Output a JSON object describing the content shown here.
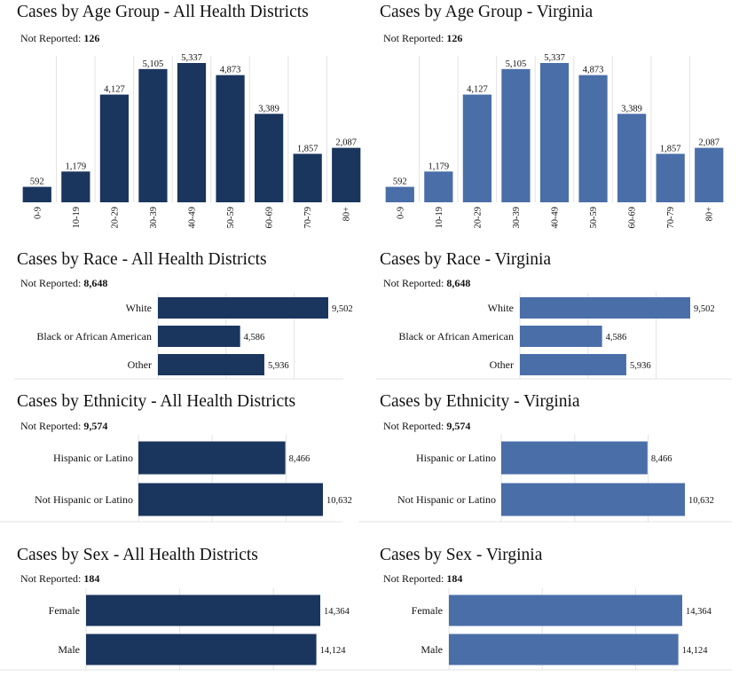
{
  "colors": {
    "dark": "#1a355e",
    "light": "#4a6ea8",
    "grid": "#e3e3e3",
    "text": "#111111"
  },
  "not_reported_label": "Not Reported:",
  "panels": {
    "age_all": {
      "title": "Cases by Age Group - All Health Districts",
      "not_reported": "126"
    },
    "age_va": {
      "title": "Cases by Age Group - Virginia",
      "not_reported": "126"
    },
    "race_all": {
      "title": "Cases by Race - All Health Districts",
      "not_reported": "8,648"
    },
    "race_va": {
      "title": "Cases by Race - Virginia",
      "not_reported": "8,648"
    },
    "eth_all": {
      "title": "Cases by Ethnicity - All Health Districts",
      "not_reported": "9,574"
    },
    "eth_va": {
      "title": "Cases by Ethnicity - Virginia",
      "not_reported": "9,574"
    },
    "sex_all": {
      "title": "Cases by Sex - All Health Districts",
      "not_reported": "184"
    },
    "sex_va": {
      "title": "Cases by Sex - Virginia",
      "not_reported": "184"
    }
  },
  "chart_data": [
    {
      "id": "age_all",
      "type": "bar",
      "orientation": "vertical",
      "title": "Cases by Age Group - All Health Districts",
      "categories": [
        "0-9",
        "10-19",
        "20-29",
        "30-39",
        "40-49",
        "50-59",
        "60-69",
        "70-79",
        "80+"
      ],
      "values": [
        592,
        1179,
        4127,
        5105,
        5337,
        4873,
        3389,
        1857,
        2087
      ],
      "labels": [
        "592",
        "1,179",
        "4,127",
        "5,105",
        "5,337",
        "4,873",
        "3,389",
        "1,857",
        "2,087"
      ],
      "ylim": [
        0,
        5337
      ],
      "color": "#1a355e"
    },
    {
      "id": "age_va",
      "type": "bar",
      "orientation": "vertical",
      "title": "Cases by Age Group - Virginia",
      "categories": [
        "0-9",
        "10-19",
        "20-29",
        "30-39",
        "40-49",
        "50-59",
        "60-69",
        "70-79",
        "80+"
      ],
      "values": [
        592,
        1179,
        4127,
        5105,
        5337,
        4873,
        3389,
        1857,
        2087
      ],
      "labels": [
        "592",
        "1,179",
        "4,127",
        "5,105",
        "5,337",
        "4,873",
        "3,389",
        "1,857",
        "2,087"
      ],
      "ylim": [
        0,
        5337
      ],
      "color": "#4a6ea8"
    },
    {
      "id": "race_all",
      "type": "bar",
      "orientation": "horizontal",
      "title": "Cases by Race - All Health Districts",
      "categories": [
        "White",
        "Black or African American",
        "Other"
      ],
      "values": [
        9502,
        4586,
        5936
      ],
      "labels": [
        "9,502",
        "4,586",
        "5,936"
      ],
      "xlim": [
        0,
        9502
      ],
      "color": "#1a355e"
    },
    {
      "id": "race_va",
      "type": "bar",
      "orientation": "horizontal",
      "title": "Cases by Race - Virginia",
      "categories": [
        "White",
        "Black or African American",
        "Other"
      ],
      "values": [
        9502,
        4586,
        5936
      ],
      "labels": [
        "9,502",
        "4,586",
        "5,936"
      ],
      "xlim": [
        0,
        9502
      ],
      "color": "#4a6ea8"
    },
    {
      "id": "eth_all",
      "type": "bar",
      "orientation": "horizontal",
      "title": "Cases by Ethnicity - All Health Districts",
      "categories": [
        "Hispanic or Latino",
        "Not Hispanic or Latino"
      ],
      "values": [
        8466,
        10632
      ],
      "labels": [
        "8,466",
        "10,632"
      ],
      "xlim": [
        0,
        10632
      ],
      "color": "#1a355e"
    },
    {
      "id": "eth_va",
      "type": "bar",
      "orientation": "horizontal",
      "title": "Cases by Ethnicity - Virginia",
      "categories": [
        "Hispanic or Latino",
        "Not Hispanic or Latino"
      ],
      "values": [
        8466,
        10632
      ],
      "labels": [
        "8,466",
        "10,632"
      ],
      "xlim": [
        0,
        10632
      ],
      "color": "#4a6ea8"
    },
    {
      "id": "sex_all",
      "type": "bar",
      "orientation": "horizontal",
      "title": "Cases by Sex - All Health Districts",
      "categories": [
        "Female",
        "Male"
      ],
      "values": [
        14364,
        14124
      ],
      "labels": [
        "14,364",
        "14,124"
      ],
      "xlim": [
        0,
        14364
      ],
      "color": "#1a355e"
    },
    {
      "id": "sex_va",
      "type": "bar",
      "orientation": "horizontal",
      "title": "Cases by Sex - Virginia",
      "categories": [
        "Female",
        "Male"
      ],
      "values": [
        14364,
        14124
      ],
      "labels": [
        "14,364",
        "14,124"
      ],
      "xlim": [
        0,
        14364
      ],
      "color": "#4a6ea8"
    }
  ]
}
